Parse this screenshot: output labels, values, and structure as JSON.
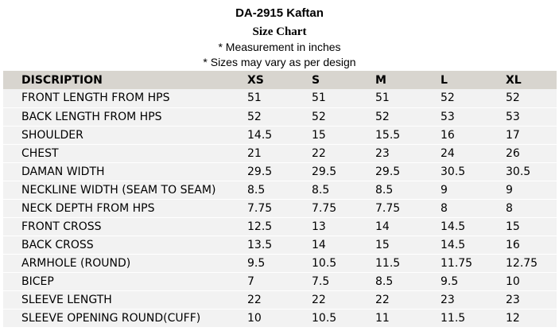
{
  "title": "DA-2915 Kaftan",
  "subtitle": "Size Chart",
  "notes": [
    "* Measurement in inches",
    "* Sizes may vary as per design"
  ],
  "table": {
    "headers": [
      "DISCRIPTION",
      "XS",
      "S",
      "M",
      "L",
      "XL"
    ],
    "rows": [
      [
        "FRONT LENGTH FROM HPS",
        "51",
        "51",
        "51",
        "52",
        "52"
      ],
      [
        "BACK LENGTH FROM HPS",
        "52",
        "52",
        "52",
        "53",
        "53"
      ],
      [
        "SHOULDER",
        "14.5",
        "15",
        "15.5",
        "16",
        "17"
      ],
      [
        "CHEST",
        "21",
        "22",
        "23",
        "24",
        "26"
      ],
      [
        "DAMAN WIDTH",
        "29.5",
        "29.5",
        "29.5",
        "30.5",
        "30.5"
      ],
      [
        "NECKLINE WIDTH (SEAM TO SEAM)",
        "8.5",
        "8.5",
        "8.5",
        "9",
        "9"
      ],
      [
        "NECK DEPTH FROM HPS",
        "7.75",
        "7.75",
        "7.75",
        "8",
        "8"
      ],
      [
        "FRONT CROSS",
        "12.5",
        "13",
        "14",
        "14.5",
        "15"
      ],
      [
        "BACK CROSS",
        "13.5",
        "14",
        "15",
        "14.5",
        "16"
      ],
      [
        "ARMHOLE (ROUND)",
        "9.5",
        "10.5",
        "11.5",
        "11.75",
        "12.75"
      ],
      [
        "BICEP",
        "7",
        "7.5",
        "8.5",
        "9.5",
        "10"
      ],
      [
        "SLEEVE LENGTH",
        "22",
        "22",
        "22",
        "23",
        "23"
      ],
      [
        "SLEEVE OPENING ROUND(CUFF)",
        "10",
        "10.5",
        "11",
        "11.5",
        "12"
      ]
    ]
  },
  "colors": {
    "header_bg": "#d8d5cf",
    "row_bg": "#f2f2f2"
  }
}
